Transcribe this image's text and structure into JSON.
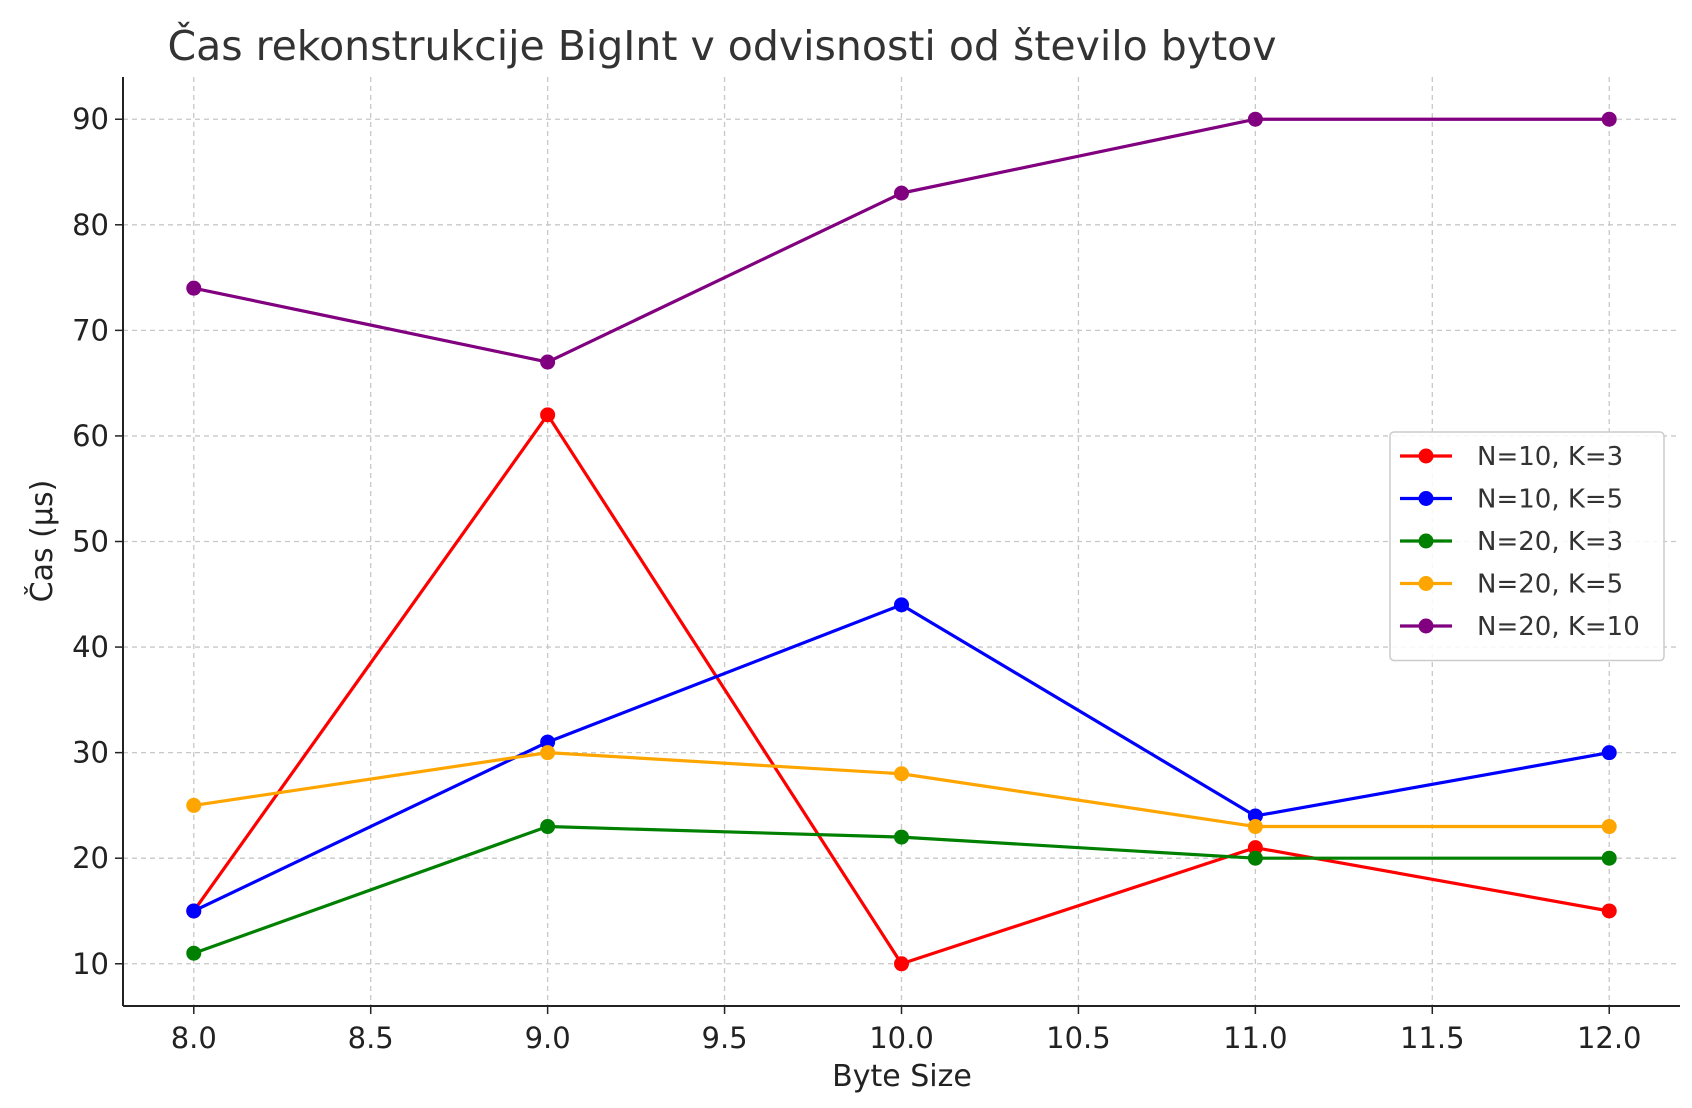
{
  "chart_data": {
    "type": "line",
    "title": "Čas rekonstrukcije BigInt v odvisnosti od število bytov",
    "xlabel": "Byte Size",
    "ylabel": "Čas (µs)",
    "x": [
      8,
      9,
      10,
      11,
      12
    ],
    "xlim": [
      7.8,
      12.2
    ],
    "ylim": [
      6,
      94
    ],
    "xticks": [
      8.0,
      8.5,
      9.0,
      9.5,
      10.0,
      10.5,
      11.0,
      11.5,
      12.0
    ],
    "xtick_labels": [
      "8.0",
      "8.5",
      "9.0",
      "9.5",
      "10.0",
      "10.5",
      "11.0",
      "11.5",
      "12.0"
    ],
    "yticks": [
      10,
      20,
      30,
      40,
      50,
      60,
      70,
      80,
      90
    ],
    "ytick_labels": [
      "10",
      "20",
      "30",
      "40",
      "50",
      "60",
      "70",
      "80",
      "90"
    ],
    "grid": true,
    "legend_position": "center-right",
    "series": [
      {
        "name": "N=10, K=3",
        "color": "#ff0000",
        "values": [
          15,
          62,
          10,
          21,
          15
        ]
      },
      {
        "name": "N=10, K=5",
        "color": "#0000ff",
        "values": [
          15,
          31,
          44,
          24,
          30
        ]
      },
      {
        "name": "N=20, K=3",
        "color": "#008000",
        "values": [
          11,
          23,
          22,
          20,
          20
        ]
      },
      {
        "name": "N=20, K=5",
        "color": "#ffa500",
        "values": [
          25,
          30,
          28,
          23,
          23
        ]
      },
      {
        "name": "N=20, K=10",
        "color": "#800080",
        "values": [
          74,
          67,
          83,
          90,
          90
        ]
      }
    ]
  }
}
